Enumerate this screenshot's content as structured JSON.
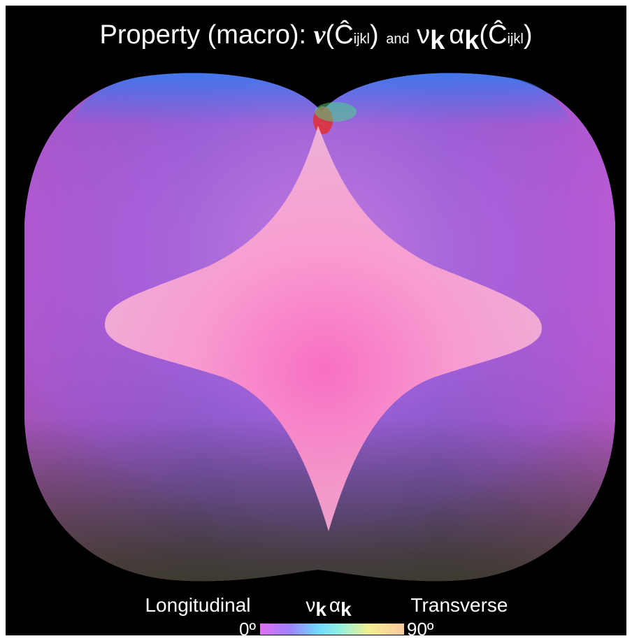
{
  "title": {
    "parts": [
      "Property (macro):",
      "v",
      "(",
      "Ĉ",
      "ijkl",
      ")",
      "and",
      "ν",
      "k",
      "α",
      "k",
      "(",
      "Ĉ",
      "ijkl",
      ")"
    ]
  },
  "legend": {
    "left": "Longitudinal",
    "center": [
      "ν",
      "k",
      "α",
      "k"
    ],
    "right": "Transverse",
    "min": "0º",
    "max": "90º"
  }
}
